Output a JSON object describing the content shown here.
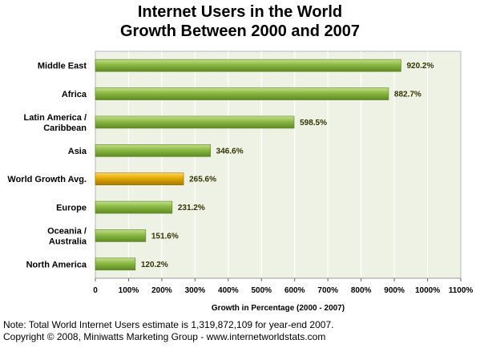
{
  "title_line1": "Internet Users in the World",
  "title_line2": "Growth Between 2000 and 2007",
  "note_line1": "Note: Total World Internet Users estimate is 1,319,872,109 for year-end 2007.",
  "note_line2": "Copyright © 2008, Miniwatts Marketing Group - www.internetworldstats.com",
  "colors": {
    "bar": "#8ab843",
    "bar_highlight": "#e0a800",
    "plot_bg": "#edf2e4",
    "grid": "#ffffff"
  },
  "chart_data": {
    "type": "bar",
    "orientation": "horizontal",
    "categories": [
      [
        "Middle East"
      ],
      [
        "Africa"
      ],
      [
        "Latin America /",
        "Caribbean"
      ],
      [
        "Asia"
      ],
      [
        "World Growth Avg."
      ],
      [
        "Europe"
      ],
      [
        "Oceania  /",
        "Australia"
      ],
      [
        "North America"
      ]
    ],
    "values": [
      920.2,
      882.7,
      598.5,
      346.6,
      265.6,
      231.2,
      151.6,
      120.2
    ],
    "value_labels": [
      "920.2%",
      "882.7%",
      "598.5%",
      "346.6%",
      "265.6%",
      "231.2%",
      "151.6%",
      "120.2%"
    ],
    "highlight_index": 4,
    "xlim": [
      0,
      1100
    ],
    "xticks": [
      0,
      100,
      200,
      300,
      400,
      500,
      600,
      700,
      800,
      900,
      1000,
      1100
    ],
    "xtick_labels": [
      "0",
      "100%",
      "200%",
      "300%",
      "400%",
      "500%",
      "600%",
      "700%",
      "800%",
      "900%",
      "1000%",
      "1100%"
    ],
    "xlabel": "Growth in Percentage (2000 - 2007)",
    "title": "Internet Users in the World Growth Between 2000 and 2007",
    "grid": true
  }
}
